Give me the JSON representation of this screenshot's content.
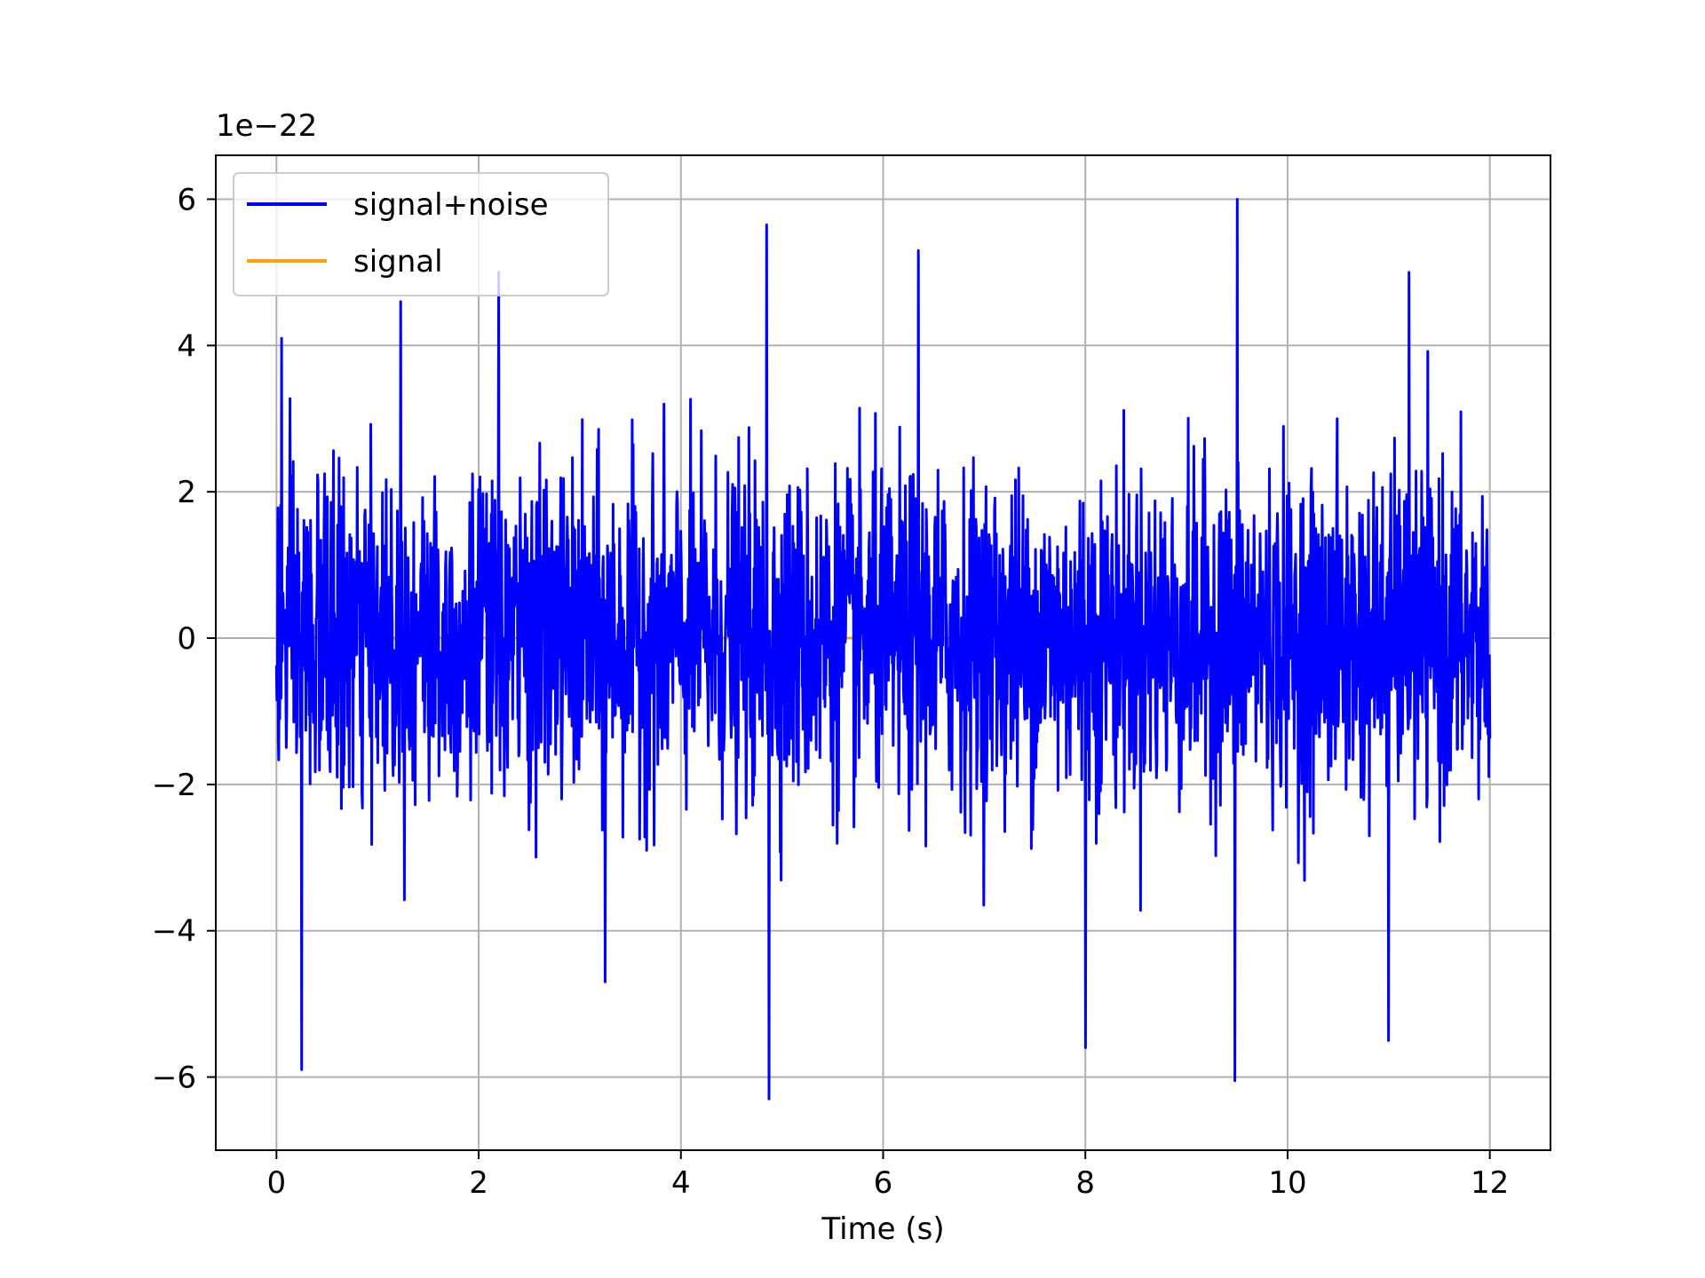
{
  "chart_data": {
    "type": "line",
    "title": "",
    "xlabel": "Time (s)",
    "ylabel": "",
    "y_offset_label": "1e−22",
    "xlim": [
      -0.6,
      12.6
    ],
    "ylim": [
      -7.0,
      6.6
    ],
    "x_ticks": [
      0,
      2,
      4,
      6,
      8,
      10,
      12
    ],
    "x_tick_labels": [
      "0",
      "2",
      "4",
      "6",
      "8",
      "10",
      "12"
    ],
    "y_ticks": [
      -6,
      -4,
      -2,
      0,
      2,
      4,
      6
    ],
    "y_tick_labels": [
      "−6",
      "−4",
      "−2",
      "0",
      "2",
      "4",
      "6"
    ],
    "grid": true,
    "legend_placement": "upper-left",
    "colors": {
      "signal_noise": "#0000ff",
      "signal": "#ffa500",
      "grid": "#b0b0b0"
    },
    "series": [
      {
        "name": "signal+noise",
        "x_range": [
          0,
          12
        ],
        "description_peaks": [
          [
            0.05,
            4.1
          ],
          [
            0.25,
            -5.9
          ],
          [
            1.23,
            4.6
          ],
          [
            2.2,
            5.0
          ],
          [
            3.25,
            -4.7
          ],
          [
            4.85,
            5.65
          ],
          [
            4.87,
            -6.3
          ],
          [
            6.35,
            5.3
          ],
          [
            8.0,
            -5.6
          ],
          [
            9.5,
            6.0
          ],
          [
            9.48,
            -6.05
          ],
          [
            11.2,
            5.0
          ],
          [
            11.0,
            -5.5
          ]
        ],
        "amplitude_rms": 1.1
      },
      {
        "name": "signal",
        "x_range": [
          0,
          12
        ],
        "values": "flat at 0 (hidden beneath signal+noise)"
      }
    ]
  }
}
